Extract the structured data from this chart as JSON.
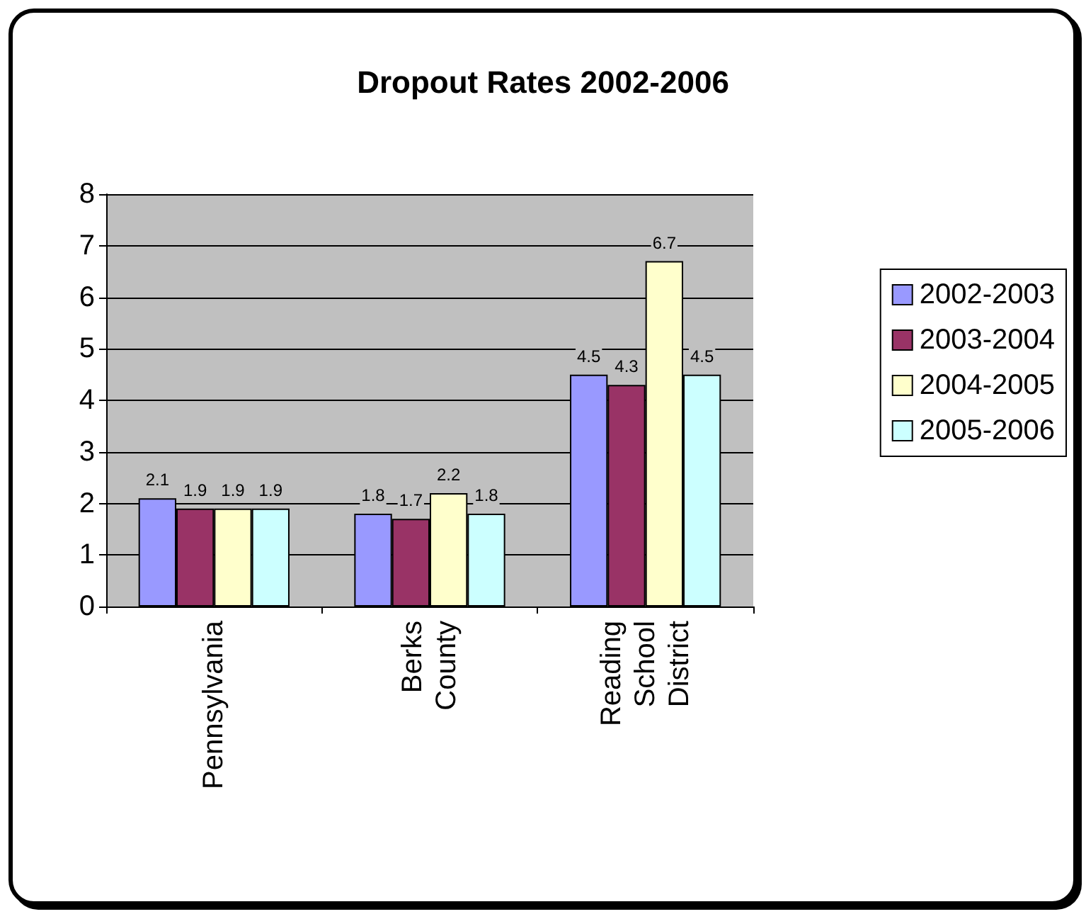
{
  "chart_data": {
    "type": "bar",
    "title": "Dropout Rates 2002-2006",
    "categories": [
      "Pennsylvania",
      "Berks County",
      "Reading School District"
    ],
    "series": [
      {
        "name": "2002-2003",
        "color": "#9999ff",
        "values": [
          2.1,
          1.8,
          4.5
        ]
      },
      {
        "name": "2003-2004",
        "color": "#993366",
        "values": [
          1.9,
          1.7,
          4.3
        ]
      },
      {
        "name": "2004-2005",
        "color": "#ffffcc",
        "values": [
          1.9,
          2.2,
          6.7
        ]
      },
      {
        "name": "2005-2006",
        "color": "#ccffff",
        "values": [
          1.9,
          1.8,
          4.5
        ]
      }
    ],
    "ylim": [
      0,
      8
    ],
    "yticks": [
      0,
      1,
      2,
      3,
      4,
      5,
      6,
      7,
      8
    ],
    "grid": "y",
    "legend": "right",
    "data_labels": true
  }
}
